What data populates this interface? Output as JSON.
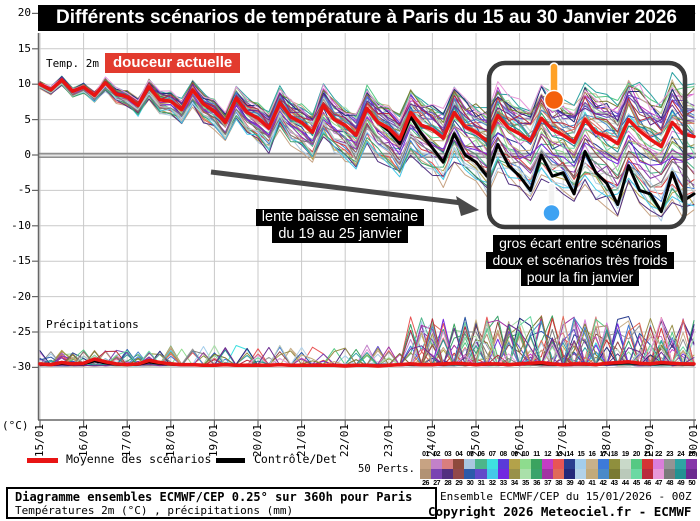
{
  "title": "Différents scénarios de température à Paris du 15 au 30 Janvier 2026",
  "labels": {
    "temp2m": "Temp. 2m",
    "douceur_badge": "douceur actuelle",
    "precipitations": "Précipitations",
    "unit_c": "(°C)",
    "annotation1_line1": "lente baisse en semaine",
    "annotation1_line2": "du 19 au 25 janvier",
    "annotation2_line1": "gros écart entre scénarios",
    "annotation2_line2": "doux et scénarios très froids",
    "annotation2_line3": "pour la fin janvier"
  },
  "legend": {
    "mean_label": "Moyenne des scénarios",
    "control_label": "Contrôle/Det",
    "perts_label": "50 Perts.",
    "pert_numbers_top": [
      "01",
      "02",
      "03",
      "04",
      "05",
      "06",
      "07",
      "08",
      "09",
      "10",
      "11",
      "12",
      "13",
      "14",
      "15",
      "16",
      "17",
      "18",
      "19",
      "20",
      "21",
      "22",
      "23",
      "24",
      "25"
    ],
    "pert_numbers_bottom": [
      "26",
      "27",
      "28",
      "29",
      "30",
      "31",
      "32",
      "33",
      "34",
      "35",
      "36",
      "37",
      "38",
      "39",
      "40",
      "41",
      "42",
      "43",
      "44",
      "45",
      "46",
      "47",
      "48",
      "49",
      "50"
    ],
    "pert_colors": [
      "#c7a383",
      "#c281c9",
      "#d97e7e",
      "#8e4a3c",
      "#a9c7e0",
      "#4db58a",
      "#3ee0e0",
      "#5a3ad9",
      "#b3a24a",
      "#8edc8e",
      "#3aa35f",
      "#c43ec4",
      "#e85555",
      "#2a3d8f",
      "#a3cdeb",
      "#c9b18a",
      "#3d7ad9",
      "#8f8f3d",
      "#c9d9c9",
      "#55c983",
      "#d43535",
      "#da7eda",
      "#949494",
      "#2fa3a3",
      "#8535a8",
      "#b29274",
      "#7a44b2",
      "#52307f",
      "#92494b",
      "#2c5aaa",
      "#6349c9",
      "#44c9e8",
      "#7229e0",
      "#99914a",
      "#aae0aa",
      "#3aa36b",
      "#a333a3",
      "#e06a5a",
      "#23297a",
      "#b2d2e8",
      "#c2aa7a",
      "#4a8ac9",
      "#7a7a33",
      "#bac9ba",
      "#6bd9a3",
      "#ba2a3d",
      "#e89ada",
      "#7a7a7a",
      "#239292",
      "#6b2a8f"
    ]
  },
  "footer": {
    "box_line1": "Diagramme ensembles ECMWF/CEP 0.25° sur 360h pour Paris",
    "box_line2": "Températures 2m (°C) , précipitations (mm)",
    "run_label": "Ensemble ECMWF/CEP du 15/01/2026 - 00Z",
    "copyright": "Copyright 2026 Meteociel.fr - ECMWF"
  },
  "colors": {
    "mean": "#e81414",
    "control": "#000000",
    "grid": "#c9c9c9",
    "zero_line": "#8f8f8f",
    "axis": "#666666",
    "arrow": "#4a4a4a",
    "highlight_box": "#3c3c3c",
    "warm_marker": "#f4600c",
    "warm_marker_stick": "#ffa126",
    "cold_marker": "#3ea2f2",
    "badge_red": "#e23b2e"
  },
  "chart_data": {
    "type": "line",
    "title": "Différents scénarios de température à Paris du 15 au 30 Janvier 2026",
    "x_tick_labels": [
      "15/01",
      "16/01",
      "17/01",
      "18/01",
      "19/01",
      "20/01",
      "21/01",
      "22/01",
      "23/01",
      "24/01",
      "25/01",
      "26/01",
      "27/01",
      "28/01",
      "29/01",
      "30/01"
    ],
    "points_per_day": 4,
    "duration_hours": 360,
    "y_axis": {
      "label": "(°C)",
      "ticks": [
        20,
        15,
        10,
        5,
        0,
        -5,
        -10,
        -15,
        -20,
        -25,
        -30
      ],
      "ylim": [
        -37.5,
        21
      ]
    },
    "series": [
      {
        "name": "Moyenne des scénarios",
        "color": "#e81414",
        "values": [
          10.0,
          9.2,
          10.6,
          9.0,
          9.6,
          8.4,
          10.2,
          8.6,
          8.2,
          7.0,
          9.6,
          7.8,
          7.6,
          6.4,
          9.2,
          7.2,
          6.2,
          4.6,
          8.0,
          6.0,
          5.2,
          3.8,
          7.4,
          5.4,
          4.6,
          3.2,
          7.0,
          5.0,
          4.2,
          2.8,
          6.6,
          4.6,
          3.8,
          2.2,
          6.0,
          4.2,
          3.6,
          2.4,
          6.0,
          4.0,
          3.2,
          2.0,
          5.6,
          3.8,
          3.0,
          2.0,
          5.2,
          3.6,
          2.8,
          1.8,
          5.0,
          3.2,
          2.6,
          1.6,
          5.0,
          3.4,
          2.2,
          1.2,
          4.6,
          3.0,
          2.6
        ]
      },
      {
        "name": "Contrôle/Det",
        "color": "#000000",
        "values": [
          10.0,
          9.2,
          10.6,
          9.0,
          9.6,
          8.4,
          10.2,
          8.6,
          8.2,
          7.0,
          9.6,
          7.8,
          7.6,
          6.4,
          9.2,
          7.2,
          6.2,
          4.6,
          8.0,
          6.0,
          5.2,
          3.8,
          7.4,
          5.4,
          4.6,
          3.2,
          7.0,
          5.0,
          4.2,
          2.8,
          6.6,
          4.6,
          3.4,
          1.6,
          5.4,
          3.0,
          1.0,
          -1.0,
          3.0,
          0.0,
          -1.0,
          -3.0,
          1.5,
          -1.5,
          -3.0,
          -5.0,
          0.0,
          -3.0,
          -2.5,
          -5.5,
          0.5,
          -2.5,
          -4.0,
          -7.0,
          -1.5,
          -5.0,
          -5.5,
          -8.0,
          -2.5,
          -6.5,
          -5.5
        ]
      }
    ],
    "precipitation": {
      "label": "Précipitations",
      "baseline_on_temp_axis": -30,
      "mean_mm": [
        0.3,
        0.2,
        0.5,
        0.3,
        0.4,
        1.0,
        0.6,
        0.3,
        0.2,
        0.3,
        0.8,
        0.5,
        0.3,
        0.2,
        0.2,
        0.1,
        0.1,
        0.2,
        0.1,
        0.1,
        0.1,
        0.1,
        0.2,
        0.1,
        0.1,
        0.1,
        0.1,
        0.1,
        0.0,
        0.1,
        0.1,
        0.0,
        0.1,
        0.2,
        0.3,
        0.2,
        0.2,
        0.3,
        0.4,
        0.3,
        0.2,
        0.3,
        0.3,
        0.2,
        0.3,
        0.4,
        0.5,
        0.3,
        0.2,
        0.3,
        0.3,
        0.2,
        0.4,
        0.5,
        0.6,
        0.4,
        0.3,
        0.5,
        0.4,
        0.3,
        0.3
      ]
    },
    "ensemble": {
      "count": 50,
      "seed": 7,
      "precip_seed": 11,
      "spread_start": 0.25,
      "spread_end": 6.2,
      "cold_skew": 1.75,
      "noise": 1.4
    }
  }
}
